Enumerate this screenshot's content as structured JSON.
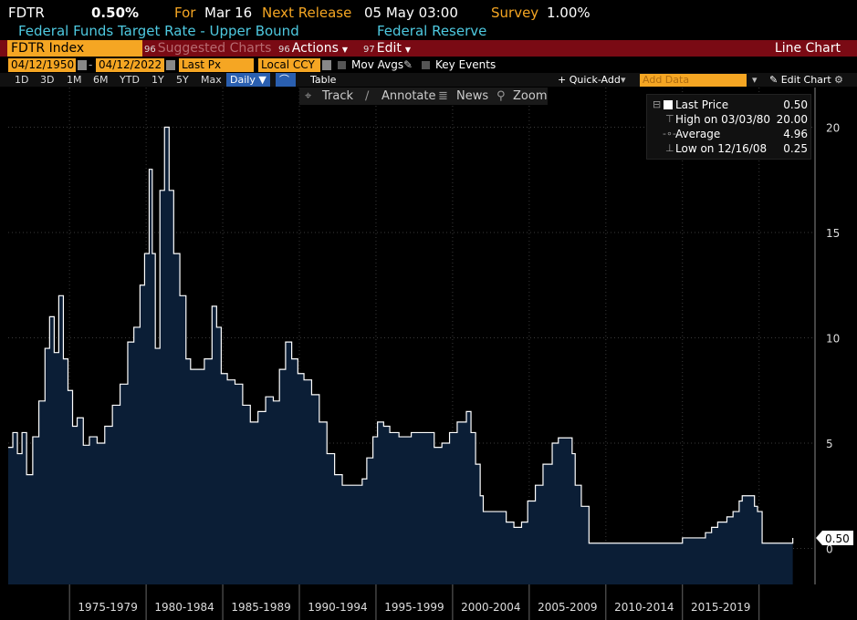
{
  "header": {
    "ticker": "FDTR",
    "last": "0.50%",
    "for_label": "For",
    "for_date": "Mar 16",
    "next_release_label": "Next Release",
    "next_release": "05 May 03:00",
    "survey_label": "Survey",
    "survey": "1.00%",
    "description": "Federal Funds Target Rate - Upper Bound",
    "source": "Federal Reserve"
  },
  "toolbar": {
    "security": "FDTR Index",
    "suggested_num": "96",
    "suggested": "Suggested Charts",
    "actions_num": "96",
    "actions": "Actions",
    "edit_num": "97",
    "edit": "Edit",
    "title": "Line Chart"
  },
  "daterow": {
    "start": "04/12/1950",
    "end": "04/12/2022",
    "field": "Last Px",
    "currency": "Local CCY",
    "mov_avgs": "Mov Avgs",
    "key_events": "Key Events"
  },
  "rangerow": {
    "ranges": [
      "1D",
      "3D",
      "1M",
      "6M",
      "YTD",
      "1Y",
      "5Y",
      "Max"
    ],
    "period": "Daily",
    "table": "Table",
    "quick_add": "+ Quick-Add",
    "add_data_placeholder": "Add Data",
    "edit_chart": "Edit Chart"
  },
  "tools": {
    "track": "Track",
    "annotate": "Annotate",
    "news": "News",
    "zoom": "Zoom"
  },
  "legend": {
    "last_label": "Last Price",
    "last_value": "0.50",
    "high_label": "High on 03/03/80",
    "high_value": "20.00",
    "avg_label": "Average",
    "avg_value": "4.96",
    "low_label": "Low on 12/16/08",
    "low_value": "0.25"
  },
  "chart_data": {
    "type": "area",
    "x_labels": [
      "1975-1979",
      "1980-1984",
      "1985-1989",
      "1990-1994",
      "1995-1999",
      "2000-2004",
      "2005-2009",
      "2010-2014",
      "2015-2019"
    ],
    "y_ticks": [
      0,
      5,
      10,
      15,
      20
    ],
    "ylim": [
      -1.6,
      20.8
    ],
    "last_value_tag": "0.50",
    "colors": {
      "fill": "#0b1e36",
      "line": "#ffffff",
      "grid": "#3a3a3a"
    },
    "x": [
      1971.0,
      1971.3,
      1971.6,
      1971.9,
      1972.2,
      1972.6,
      1973.0,
      1973.4,
      1973.7,
      1974.0,
      1974.3,
      1974.6,
      1974.9,
      1975.2,
      1975.5,
      1975.9,
      1976.3,
      1976.8,
      1977.3,
      1977.8,
      1978.3,
      1978.8,
      1979.2,
      1979.6,
      1979.9,
      1980.2,
      1980.4,
      1980.6,
      1980.9,
      1981.2,
      1981.5,
      1981.8,
      1982.2,
      1982.6,
      1982.9,
      1983.3,
      1983.8,
      1984.3,
      1984.6,
      1984.9,
      1985.3,
      1985.8,
      1986.3,
      1986.8,
      1987.3,
      1987.8,
      1988.3,
      1988.7,
      1989.1,
      1989.5,
      1989.9,
      1990.3,
      1990.8,
      1991.3,
      1991.8,
      1992.3,
      1992.8,
      1993.3,
      1993.8,
      1994.1,
      1994.4,
      1994.8,
      1995.1,
      1995.5,
      1995.9,
      1996.5,
      1997.3,
      1998.0,
      1998.8,
      1999.3,
      1999.8,
      2000.3,
      2000.9,
      2001.2,
      2001.5,
      2001.8,
      2002.0,
      2002.9,
      2003.5,
      2004.0,
      2004.5,
      2004.9,
      2005.4,
      2005.9,
      2006.5,
      2006.9,
      2007.5,
      2007.8,
      2008.0,
      2008.4,
      2008.9,
      2009.5,
      2011.0,
      2012.5,
      2014.0,
      2015.0,
      2015.9,
      2016.5,
      2016.9,
      2017.3,
      2017.9,
      2018.3,
      2018.7,
      2018.9,
      2019.5,
      2019.7,
      2019.9,
      2020.1,
      2020.2,
      2020.8,
      2021.5,
      2022.2
    ],
    "y": [
      4.8,
      5.5,
      4.5,
      5.5,
      3.5,
      5.3,
      7.0,
      9.5,
      11.0,
      9.3,
      12.0,
      9.0,
      7.5,
      5.8,
      6.2,
      4.9,
      5.3,
      5.0,
      5.8,
      6.8,
      7.8,
      9.8,
      10.5,
      12.5,
      14.0,
      18.0,
      14.0,
      9.5,
      17.0,
      20.0,
      17.0,
      14.0,
      12.0,
      9.0,
      8.5,
      8.5,
      9.0,
      11.5,
      10.5,
      8.3,
      8.0,
      7.8,
      6.8,
      6.0,
      6.5,
      7.2,
      7.0,
      8.5,
      9.8,
      9.0,
      8.3,
      8.0,
      7.3,
      6.0,
      4.5,
      3.5,
      3.0,
      3.0,
      3.0,
      3.3,
      4.3,
      5.3,
      6.0,
      5.8,
      5.5,
      5.3,
      5.5,
      5.5,
      4.8,
      5.0,
      5.5,
      6.0,
      6.5,
      5.5,
      4.0,
      2.5,
      1.75,
      1.75,
      1.25,
      1.0,
      1.25,
      2.25,
      3.0,
      4.0,
      5.0,
      5.25,
      5.25,
      4.5,
      3.0,
      2.0,
      0.25,
      0.25,
      0.25,
      0.25,
      0.25,
      0.5,
      0.5,
      0.75,
      1.0,
      1.25,
      1.5,
      1.75,
      2.25,
      2.5,
      2.5,
      2.0,
      1.75,
      1.75,
      0.25,
      0.25,
      0.25,
      0.5
    ]
  }
}
